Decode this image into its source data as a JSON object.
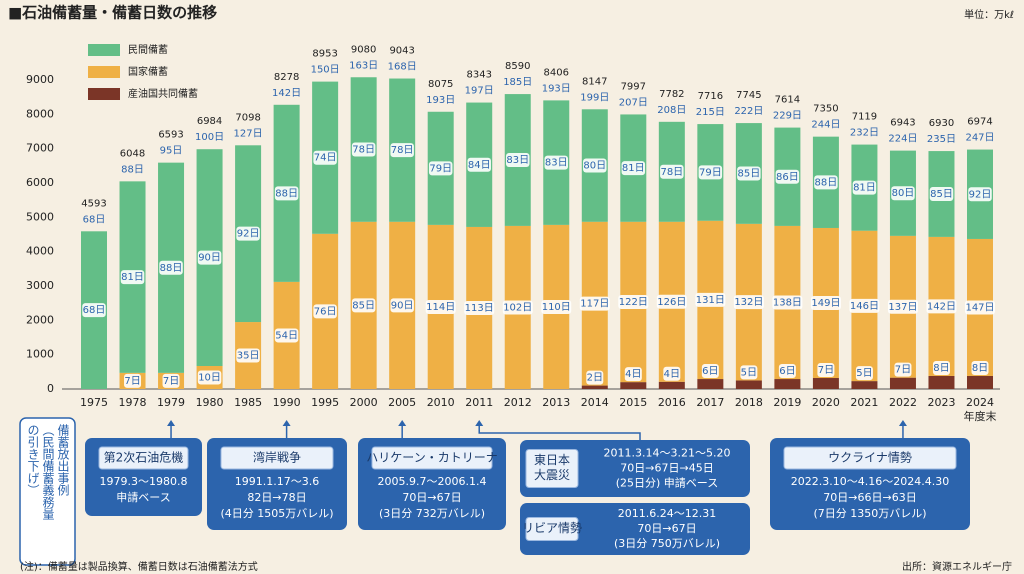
{
  "chart_data": {
    "type": "stacked-bar",
    "title": "■石油備蓄量・備蓄日数の推移",
    "unit": "単位：万kℓ",
    "categories": [
      "1975",
      "1978",
      "1979",
      "1980",
      "1985",
      "1990",
      "1995",
      "2000",
      "2005",
      "2010",
      "2011",
      "2012",
      "2013",
      "2014",
      "2015",
      "2016",
      "2017",
      "2018",
      "2019",
      "2020",
      "2021",
      "2022",
      "2023",
      "2024"
    ],
    "last_category_note": "年度末",
    "series": [
      {
        "name": "民間備蓄",
        "color": "#63be87",
        "values": [
          4593,
          5578,
          6123,
          6314,
          5148,
          5158,
          4433,
          4210,
          4173,
          3295,
          3623,
          3840,
          3626,
          3277,
          3127,
          2912,
          2816,
          2935,
          2864,
          2660,
          2509,
          2483,
          2500,
          2604
        ],
        "day_labels": [
          "68日",
          "81日",
          "88日",
          "90日",
          "92日",
          "88日",
          "74日",
          "78日",
          "78日",
          "79日",
          "84日",
          "83日",
          "83日",
          "80日",
          "81日",
          "78日",
          "79日",
          "85日",
          "86日",
          "88日",
          "81日",
          "80日",
          "85日",
          "92日"
        ]
      },
      {
        "name": "国家備蓄",
        "color": "#efb045",
        "values": [
          null,
          470,
          470,
          670,
          1950,
          3120,
          4520,
          4870,
          4870,
          4780,
          4720,
          4750,
          4780,
          4770,
          4670,
          4660,
          4610,
          4560,
          4460,
          4370,
          4380,
          4130,
          4050,
          3990
        ],
        "day_labels": [
          null,
          "7日",
          "7日",
          "10日",
          "35日",
          "54日",
          "76日",
          "85日",
          "90日",
          "114日",
          "113日",
          "102日",
          "110日",
          "117日",
          "122日",
          "126日",
          "131日",
          "132日",
          "138日",
          "149日",
          "146日",
          "137日",
          "142日",
          "147日"
        ]
      },
      {
        "name": "産油国共同備蓄",
        "color": "#7b3527",
        "values": [
          null,
          null,
          null,
          null,
          null,
          null,
          null,
          null,
          null,
          null,
          null,
          null,
          null,
          100,
          200,
          210,
          290,
          250,
          290,
          320,
          230,
          330,
          380,
          380
        ],
        "day_labels": [
          null,
          null,
          null,
          null,
          null,
          null,
          null,
          null,
          null,
          null,
          null,
          null,
          null,
          "2日",
          "4日",
          "4日",
          "6日",
          "5日",
          "6日",
          "7日",
          "5日",
          "7日",
          "8日",
          "8日"
        ]
      }
    ],
    "totals": [
      4593,
      6048,
      6593,
      6984,
      7098,
      8278,
      8953,
      9080,
      9043,
      8075,
      8343,
      8590,
      8406,
      8147,
      7997,
      7782,
      7716,
      7745,
      7614,
      7350,
      7119,
      6943,
      6930,
      6974
    ],
    "total_day_labels": [
      "68日",
      "88日",
      "95日",
      "100日",
      "127日",
      "142日",
      "150日",
      "163日",
      "168日",
      "193日",
      "197日",
      "185日",
      "193日",
      "199日",
      "207日",
      "208日",
      "215日",
      "222日",
      "229日",
      "244日",
      "232日",
      "224日",
      "235日",
      "247日"
    ],
    "ylim": [
      0,
      9000
    ],
    "yticks": [
      0,
      1000,
      2000,
      3000,
      4000,
      5000,
      6000,
      7000,
      8000,
      9000
    ],
    "grid": false,
    "side_note": [
      "備蓄放出事例",
      "（民間備蓄義務量",
      "の引き下げ）"
    ],
    "annotations": [
      {
        "title": [
          "第2次石油危機"
        ],
        "lines": [
          "1979.3～1980.8",
          "申請ベース"
        ]
      },
      {
        "title": [
          "湾岸戦争"
        ],
        "lines": [
          "1991.1.17～3.6",
          "82日→78日",
          "(4日分 1505万バレル)"
        ]
      },
      {
        "title": [
          "ハリケーン・カトリーナ"
        ],
        "lines": [
          "2005.9.7～2006.1.4",
          "70日→67日",
          "(3日分 732万バレル)"
        ]
      },
      {
        "title": [
          "東日本",
          "大震災"
        ],
        "lines": [
          "2011.3.14～3.21～5.20",
          "70日→67日→45日",
          "(25日分) 申請ベース"
        ]
      },
      {
        "title": [
          "リビア情勢"
        ],
        "lines": [
          "2011.6.24～12.31",
          "70日→67日",
          "(3日分 750万バレル)"
        ]
      },
      {
        "title": [
          "ウクライナ情勢"
        ],
        "lines": [
          "2022.3.10～4.16～2024.4.30",
          "70日→66日→63日",
          "(7日分 1350万バレル)"
        ]
      }
    ],
    "note": "(注)：備蓄量は製品換算、備蓄日数は石油備蓄法方式",
    "source": "出所：資源エネルギー庁"
  }
}
